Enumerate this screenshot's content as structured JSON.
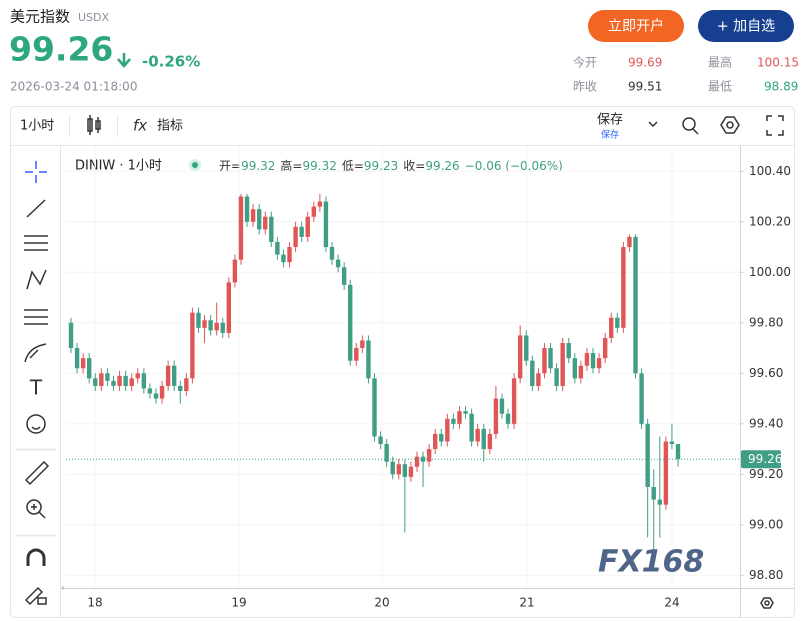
{
  "header": {
    "name": "美元指数",
    "code": "USDX",
    "price": "99.26",
    "change": "-0.26%",
    "datetime": "2026-03-24 01:18:00",
    "buttons": [
      "立即开户",
      "+ 加自选"
    ],
    "stats": [
      {
        "label": "今开",
        "value": "99.69"
      },
      {
        "label": "最高",
        "value": "100.15"
      },
      {
        "label": "昨收",
        "value": "99.51"
      },
      {
        "label": "最低",
        "value": "98.89"
      }
    ]
  },
  "toolbar": {
    "interval": "1小时",
    "indicators": "指标",
    "save": "保存",
    "save_sub": "保存"
  },
  "chart_data": {
    "type": "candlestick",
    "title": "DINIW · 1小时",
    "legend": [
      {
        "label": "开=",
        "value": "99.32"
      },
      {
        "label": "高=",
        "value": "99.32"
      },
      {
        "label": "低=",
        "value": "99.23"
      },
      {
        "label": "收=",
        "value": "99.26"
      }
    ],
    "legend_change": "−0.06 (−0.06%)",
    "up_color": "#e05656",
    "down_color": "#3f9e85",
    "ylim": [
      98.75,
      100.5
    ],
    "yticks": [
      {
        "value": 100.4,
        "label": "100.40"
      },
      {
        "value": 100.2,
        "label": "100.20"
      },
      {
        "value": 100,
        "label": "100.00"
      },
      {
        "value": 99.8,
        "label": "99.80"
      },
      {
        "value": 99.6,
        "label": "99.60"
      },
      {
        "value": 99.4,
        "label": "99.40"
      },
      {
        "value": 99.2,
        "label": "99.20"
      },
      {
        "value": 99,
        "label": "99.00"
      },
      {
        "value": 98.8,
        "label": "98.80"
      }
    ],
    "x_labels": [
      "18",
      "19",
      "20",
      "21",
      "24"
    ],
    "last_price": 99.26,
    "watermark": "FX168",
    "ohlc": [
      [
        99.8,
        99.82,
        99.68,
        99.7
      ],
      [
        99.7,
        99.72,
        99.6,
        99.62
      ],
      [
        99.62,
        99.68,
        99.6,
        99.66
      ],
      [
        99.66,
        99.68,
        99.56,
        99.58
      ],
      [
        99.58,
        99.6,
        99.53,
        99.55
      ],
      [
        99.55,
        99.62,
        99.53,
        99.6
      ],
      [
        99.6,
        99.62,
        99.55,
        99.57
      ],
      [
        99.57,
        99.59,
        99.53,
        99.55
      ],
      [
        99.55,
        99.61,
        99.53,
        99.59
      ],
      [
        99.59,
        99.61,
        99.53,
        99.55
      ],
      [
        99.55,
        99.6,
        99.53,
        99.58
      ],
      [
        99.58,
        99.62,
        99.56,
        99.6
      ],
      [
        99.6,
        99.62,
        99.52,
        99.54
      ],
      [
        99.54,
        99.56,
        99.5,
        99.52
      ],
      [
        99.52,
        99.54,
        99.48,
        99.5
      ],
      [
        99.5,
        99.57,
        99.48,
        99.55
      ],
      [
        99.55,
        99.65,
        99.53,
        99.63
      ],
      [
        99.63,
        99.65,
        99.53,
        99.55
      ],
      [
        99.55,
        99.57,
        99.48,
        99.53
      ],
      [
        99.53,
        99.6,
        99.51,
        99.58
      ],
      [
        99.58,
        99.86,
        99.56,
        99.84
      ],
      [
        99.84,
        99.86,
        99.76,
        99.78
      ],
      [
        99.78,
        99.83,
        99.72,
        99.81
      ],
      [
        99.81,
        99.83,
        99.75,
        99.77
      ],
      [
        99.77,
        99.88,
        99.75,
        99.8
      ],
      [
        99.8,
        99.82,
        99.74,
        99.76
      ],
      [
        99.76,
        99.98,
        99.74,
        99.96
      ],
      [
        99.96,
        100.07,
        99.94,
        100.05
      ],
      [
        100.05,
        100.31,
        100.03,
        100.3
      ],
      [
        100.3,
        100.31,
        100.18,
        100.2
      ],
      [
        100.2,
        100.27,
        100.18,
        100.25
      ],
      [
        100.25,
        100.27,
        100.15,
        100.17
      ],
      [
        100.17,
        100.24,
        100.15,
        100.22
      ],
      [
        100.22,
        100.24,
        100.1,
        100.12
      ],
      [
        100.12,
        100.14,
        100.05,
        100.07
      ],
      [
        100.07,
        100.09,
        100.02,
        100.04
      ],
      [
        100.04,
        100.12,
        100.02,
        100.1
      ],
      [
        100.1,
        100.2,
        100.08,
        100.18
      ],
      [
        100.18,
        100.2,
        100.12,
        100.14
      ],
      [
        100.14,
        100.24,
        100.12,
        100.22
      ],
      [
        100.22,
        100.28,
        100.2,
        100.26
      ],
      [
        100.26,
        100.31,
        100.24,
        100.28
      ],
      [
        100.28,
        100.3,
        100.08,
        100.1
      ],
      [
        100.1,
        100.12,
        100.03,
        100.05
      ],
      [
        100.05,
        100.07,
        100.0,
        100.02
      ],
      [
        100.02,
        100.04,
        99.93,
        99.95
      ],
      [
        99.95,
        99.97,
        99.63,
        99.65
      ],
      [
        99.65,
        99.72,
        99.63,
        99.7
      ],
      [
        99.7,
        99.75,
        99.68,
        99.73
      ],
      [
        99.73,
        99.75,
        99.56,
        99.58
      ],
      [
        99.58,
        99.6,
        99.33,
        99.35
      ],
      [
        99.35,
        99.37,
        99.3,
        99.32
      ],
      [
        99.32,
        99.34,
        99.23,
        99.25
      ],
      [
        99.25,
        99.27,
        99.18,
        99.2
      ],
      [
        99.2,
        99.26,
        99.18,
        99.24
      ],
      [
        99.24,
        99.26,
        98.97,
        99.19
      ],
      [
        99.19,
        99.25,
        99.17,
        99.23
      ],
      [
        99.23,
        99.29,
        99.21,
        99.27
      ],
      [
        99.27,
        99.29,
        99.15,
        99.25
      ],
      [
        99.25,
        99.32,
        99.23,
        99.3
      ],
      [
        99.3,
        99.38,
        99.28,
        99.36
      ],
      [
        99.36,
        99.38,
        99.31,
        99.33
      ],
      [
        99.33,
        99.44,
        99.31,
        99.42
      ],
      [
        99.42,
        99.44,
        99.38,
        99.4
      ],
      [
        99.4,
        99.47,
        99.38,
        99.45
      ],
      [
        99.45,
        99.47,
        99.42,
        99.44
      ],
      [
        99.44,
        99.46,
        99.31,
        99.33
      ],
      [
        99.33,
        99.4,
        99.31,
        99.38
      ],
      [
        99.38,
        99.4,
        99.25,
        99.3
      ],
      [
        99.3,
        99.38,
        99.28,
        99.36
      ],
      [
        99.36,
        99.55,
        99.34,
        99.5
      ],
      [
        99.5,
        99.52,
        99.42,
        99.44
      ],
      [
        99.44,
        99.46,
        99.38,
        99.4
      ],
      [
        99.4,
        99.6,
        99.38,
        99.58
      ],
      [
        99.58,
        99.79,
        99.56,
        99.75
      ],
      [
        99.75,
        99.77,
        99.63,
        99.65
      ],
      [
        99.65,
        99.67,
        99.53,
        99.55
      ],
      [
        99.55,
        99.62,
        99.53,
        99.6
      ],
      [
        99.6,
        99.72,
        99.58,
        99.7
      ],
      [
        99.7,
        99.72,
        99.6,
        99.62
      ],
      [
        99.62,
        99.64,
        99.53,
        99.55
      ],
      [
        99.55,
        99.74,
        99.53,
        99.72
      ],
      [
        99.72,
        99.74,
        99.64,
        99.66
      ],
      [
        99.66,
        99.68,
        99.56,
        99.58
      ],
      [
        99.58,
        99.65,
        99.56,
        99.63
      ],
      [
        99.63,
        99.7,
        99.61,
        99.68
      ],
      [
        99.68,
        99.7,
        99.6,
        99.62
      ],
      [
        99.62,
        99.68,
        99.6,
        99.66
      ],
      [
        99.66,
        99.76,
        99.64,
        99.74
      ],
      [
        99.74,
        99.84,
        99.72,
        99.82
      ],
      [
        99.82,
        99.84,
        99.76,
        99.78
      ],
      [
        99.78,
        100.12,
        99.76,
        100.1
      ],
      [
        100.1,
        100.15,
        100.08,
        100.14
      ],
      [
        100.14,
        100.15,
        99.58,
        99.6
      ],
      [
        99.6,
        99.62,
        99.38,
        99.4
      ],
      [
        99.4,
        99.42,
        98.95,
        99.15
      ],
      [
        99.15,
        99.22,
        98.9,
        99.1
      ],
      [
        99.1,
        99.35,
        98.95,
        99.08
      ],
      [
        99.08,
        99.35,
        99.06,
        99.33
      ],
      [
        99.33,
        99.4,
        99.3,
        99.32
      ],
      [
        99.32,
        99.32,
        99.23,
        99.26
      ]
    ]
  }
}
